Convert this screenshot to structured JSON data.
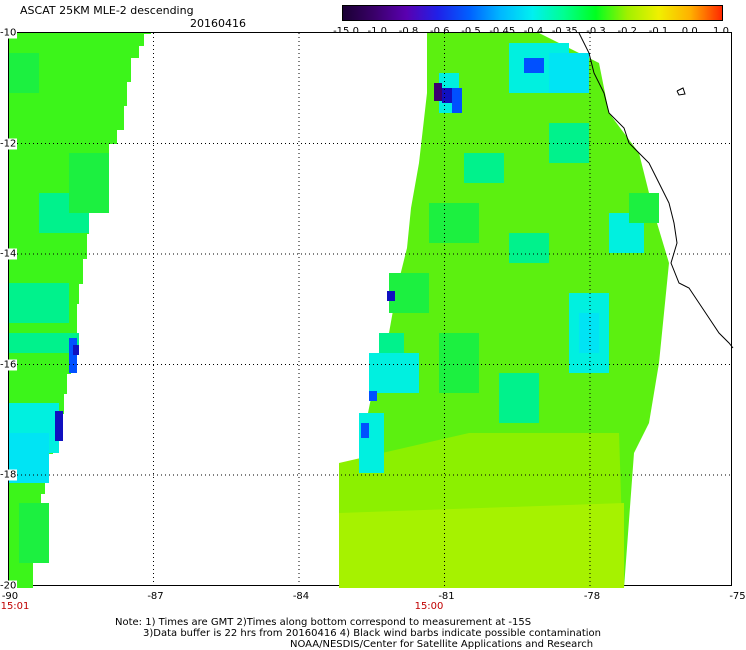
{
  "header": {
    "title": "ASCAT 25KM MLE-2 descending",
    "date": "20160416"
  },
  "colorbar": {
    "labels": [
      "-15.0",
      "-1.0",
      "-0.8",
      "-0.6",
      "-0.5",
      "-0.45",
      "-0.4",
      "-0.35",
      "-0.3",
      "-0.2",
      "-0.1",
      "0.0",
      "1.0"
    ],
    "colors": [
      "#1a0033",
      "#3a006a",
      "#5a00b0",
      "#2020e8",
      "#0060ff",
      "#00b8ff",
      "#00f0f0",
      "#00ff90",
      "#00ff20",
      "#a0f000",
      "#f0f000",
      "#ffb000",
      "#ff2800"
    ]
  },
  "map": {
    "lat_labels": [
      "-10",
      "-12",
      "-14",
      "-16",
      "-18",
      "-20"
    ],
    "lon_labels": [
      "-90",
      "-87",
      "-84",
      "-81",
      "-78",
      "-75"
    ],
    "time_labels": [
      "15:01",
      "15:00"
    ]
  },
  "notes": [
    "Note: 1) Times are GMT 2)Times along bottom correspond to measurement at -15S",
    "3)Data buffer is 22 hrs from 20160416 4) Black wind barbs indicate possible contamination",
    "NOAA/NESDIS/Center for Satellite Applications and Research"
  ]
}
